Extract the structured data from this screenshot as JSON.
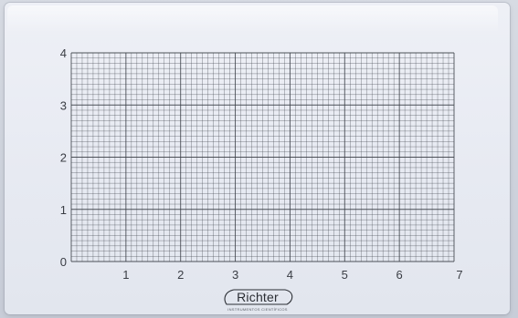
{
  "plate": {
    "x_axis_labels": [
      "1",
      "2",
      "3",
      "4",
      "5",
      "6",
      "7"
    ],
    "y_axis_labels": [
      "0",
      "1",
      "2",
      "3",
      "4"
    ],
    "x_range": [
      0,
      7
    ],
    "y_range": [
      0,
      4
    ],
    "minor_divisions_per_unit_x": 10,
    "minor_divisions_per_unit_y": 10,
    "grid_color": "#3b3f47",
    "plate_color": "#e9ecf3"
  },
  "logo": {
    "brand": "Richter",
    "subtitle": "INSTRUMENTOS CIENTÍFICOS"
  }
}
